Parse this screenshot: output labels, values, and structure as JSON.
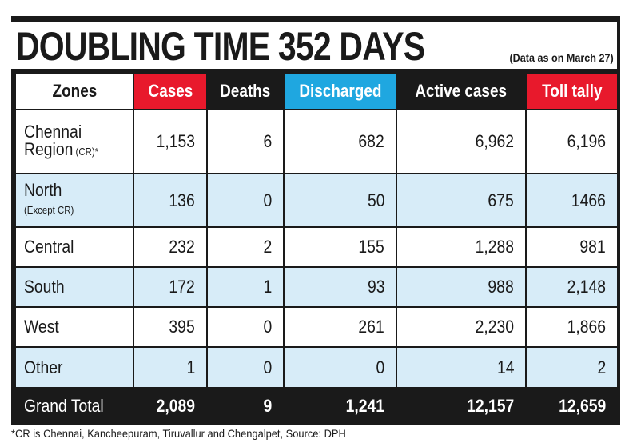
{
  "title": "DOUBLING TIME 352 DAYS",
  "note": "(Data as on March 27)",
  "headers": {
    "zones": "Zones",
    "cases": "Cases",
    "deaths": "Deaths",
    "discharged": "Discharged",
    "active": "Active cases",
    "toll": "Toll tally"
  },
  "rows": [
    {
      "zone": "Chennai",
      "zone2": "Region",
      "zone_sub": " (CR)*",
      "cases": "1,153",
      "deaths": "6",
      "discharged": "682",
      "active": "6,962",
      "toll": "6,196"
    },
    {
      "zone": "North",
      "zone2": "",
      "zone_sub": "(Except CR)",
      "cases": "136",
      "deaths": "0",
      "discharged": "50",
      "active": "675",
      "toll": "1466"
    },
    {
      "zone": "Central",
      "zone2": "",
      "zone_sub": "",
      "cases": "232",
      "deaths": "2",
      "discharged": "155",
      "active": "1,288",
      "toll": "981"
    },
    {
      "zone": "South",
      "zone2": "",
      "zone_sub": "",
      "cases": "172",
      "deaths": "1",
      "discharged": "93",
      "active": "988",
      "toll": "2,148"
    },
    {
      "zone": "West",
      "zone2": "",
      "zone_sub": "",
      "cases": "395",
      "deaths": "0",
      "discharged": "261",
      "active": "2,230",
      "toll": "1,866"
    },
    {
      "zone": "Other",
      "zone2": "",
      "zone_sub": "",
      "cases": "1",
      "deaths": "0",
      "discharged": "0",
      "active": "14",
      "toll": "2"
    }
  ],
  "total": {
    "zone": "Grand Total",
    "cases": "2,089",
    "deaths": "9",
    "discharged": "1,241",
    "active": "12,157",
    "toll": "12,659"
  },
  "footnote": "*CR is Chennai, Kancheepuram, Tiruvallur and Chengalpet, Source: DPH",
  "colors": {
    "red": "#e8192c",
    "blue": "#1fa7e0",
    "row_blue": "#d7ecf8",
    "dark": "#1a1a1a"
  }
}
